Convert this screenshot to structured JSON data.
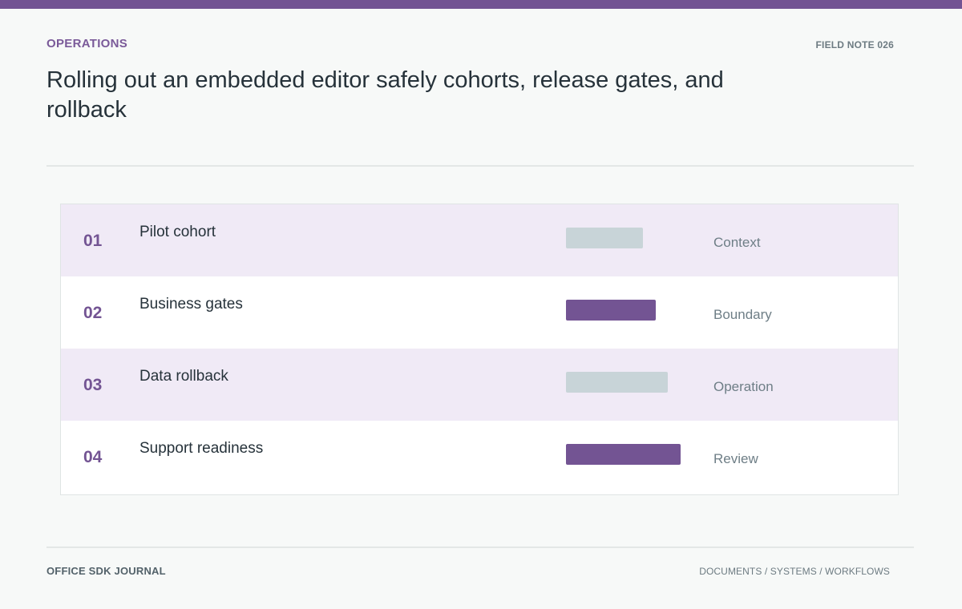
{
  "header": {
    "section": "OPERATIONS",
    "note": "FIELD NOTE 026",
    "title": "Rolling out an embedded editor safely cohorts, release gates, and rollback"
  },
  "colors": {
    "accent": "#735493",
    "neutral_bar": "#c8d4d8",
    "shaded_row": "#f0eaf6"
  },
  "table": {
    "rows": [
      {
        "number": "01",
        "label": "Pilot cohort",
        "tag": "Context",
        "bar_level": 0.31,
        "bar_style": "neutral"
      },
      {
        "number": "02",
        "label": "Business gates",
        "tag": "Boundary",
        "bar_level": 0.36,
        "bar_style": "accent"
      },
      {
        "number": "03",
        "label": "Data rollback",
        "tag": "Operation",
        "bar_level": 0.41,
        "bar_style": "neutral"
      },
      {
        "number": "04",
        "label": "Support readiness",
        "tag": "Review",
        "bar_level": 0.46,
        "bar_style": "accent"
      }
    ]
  },
  "footer": {
    "left": "OFFICE SDK JOURNAL",
    "right": "DOCUMENTS / SYSTEMS / WORKFLOWS"
  }
}
